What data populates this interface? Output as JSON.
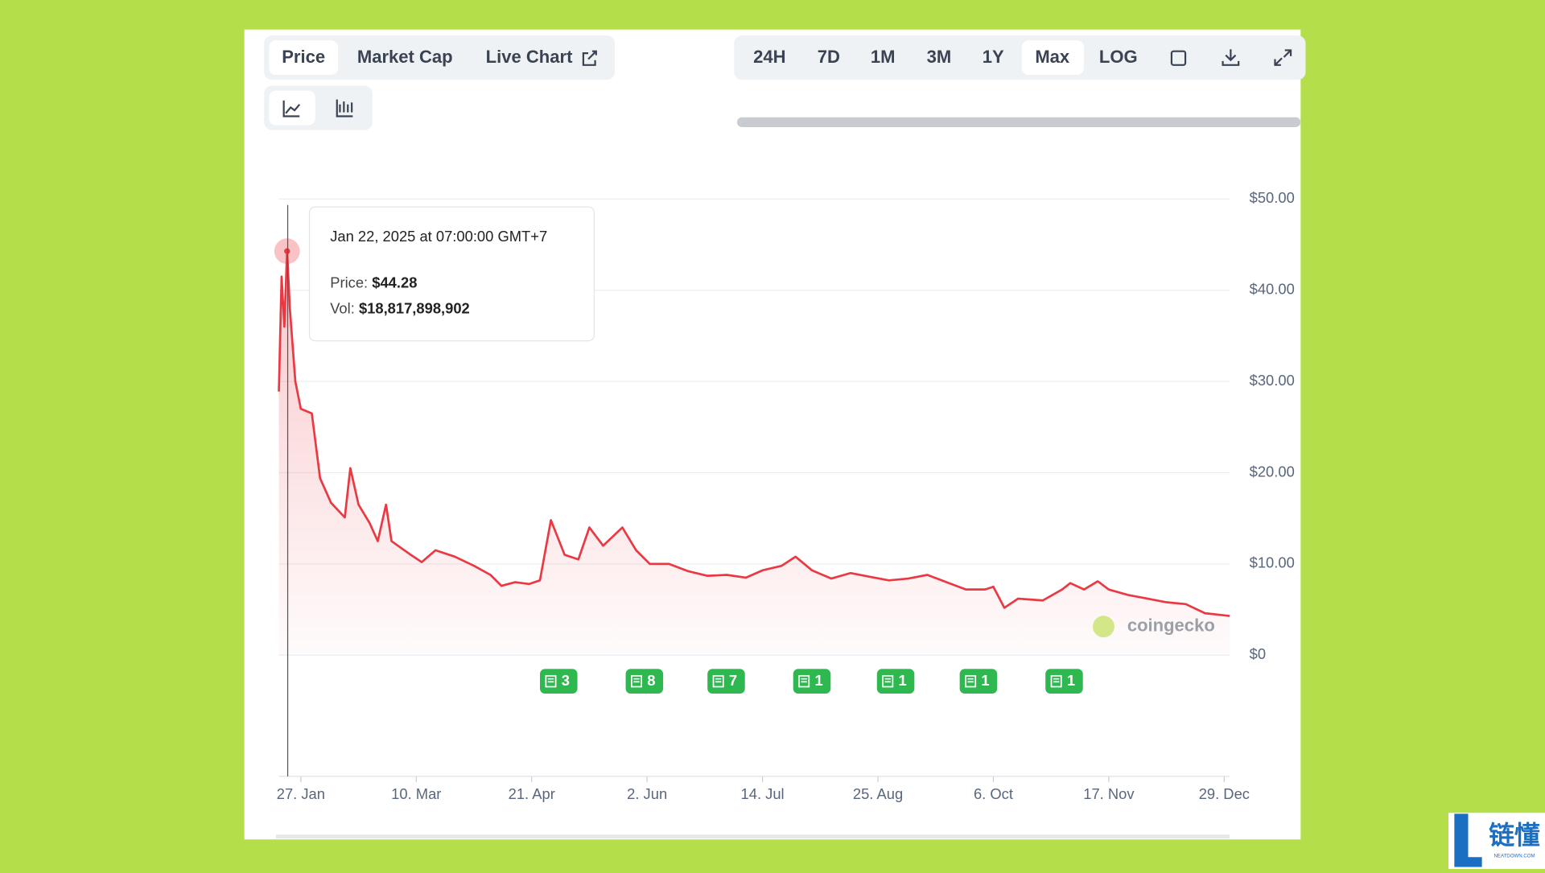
{
  "tabs": [
    "Price",
    "Market Cap",
    "Live Chart"
  ],
  "ranges": [
    "24H",
    "7D",
    "1M",
    "3M",
    "1Y",
    "Max",
    "LOG"
  ],
  "tooltip": {
    "date": "Jan 22, 2025 at 07:00:00 GMT+7",
    "price_label": "Price:",
    "price": "$44.28",
    "vol_label": "Vol:",
    "vol": "$18,817,898,902"
  },
  "news": [
    "3",
    "8",
    "7",
    "1",
    "1",
    "1",
    "1"
  ],
  "watermark": "coingecko",
  "logo": {
    "name": "链懂",
    "site": "NEATDOWN.COM"
  },
  "chart_data": {
    "type": "line",
    "x": [
      "19. Jan",
      "20. Jan",
      "21. Jan",
      "22. Jan",
      "23. Jan",
      "25. Jan",
      "27. Jan",
      "31. Jan",
      "3. Feb",
      "7. Feb",
      "12. Feb",
      "14. Feb",
      "17. Feb",
      "21. Feb",
      "24. Feb",
      "27. Feb",
      "1. Mar",
      "8. Mar",
      "12. Mar",
      "17. Mar",
      "24. Mar",
      "31. Mar",
      "6. Apr",
      "10. Apr",
      "15. Apr",
      "20. Apr",
      "24. Apr",
      "28. Apr",
      "3. May",
      "8. May",
      "12. May",
      "17. May",
      "24. May",
      "29. May",
      "3. Jun",
      "10. Jun",
      "17. Jun",
      "24. Jun",
      "1. Jul",
      "8. Jul",
      "14. Jul",
      "21. Jul",
      "26. Jul",
      "1. Aug",
      "8. Aug",
      "15. Aug",
      "22. Aug",
      "29. Aug",
      "5. Sep",
      "12. Sep",
      "19. Sep",
      "26. Sep",
      "3. Oct",
      "6. Oct",
      "10. Oct",
      "15. Oct",
      "24. Oct",
      "31. Oct",
      "3. Nov",
      "8. Nov",
      "13. Nov",
      "17. Nov",
      "24. Nov",
      "1. Dec",
      "8. Dec",
      "15. Dec",
      "22. Dec",
      "31. Dec"
    ],
    "series": [
      {
        "name": "Price",
        "color": "#ea3943",
        "values": [
          28.9,
          41.5,
          36,
          44.28,
          38,
          30,
          27,
          26.5,
          19.4,
          16.7,
          15.1,
          20.5,
          16.5,
          14.5,
          12.5,
          16.5,
          12.5,
          11,
          10.2,
          11.5,
          10.8,
          9.8,
          8.8,
          7.6,
          8,
          7.8,
          8.2,
          14.8,
          11,
          10.5,
          14,
          12,
          14,
          11.5,
          10,
          10,
          9.2,
          8.7,
          8.8,
          8.5,
          9.3,
          9.8,
          10.8,
          9.3,
          8.4,
          9,
          8.6,
          8.2,
          8.4,
          8.8,
          8,
          7.2,
          7.2,
          7.5,
          5.2,
          6.2,
          6,
          7.2,
          7.9,
          7.2,
          8.1,
          7.2,
          6.6,
          6.2,
          5.8,
          5.6,
          4.6,
          4.3
        ]
      }
    ],
    "xlim": [
      "19. Jan",
      "31. Dec"
    ],
    "xticks": [
      "27. Jan",
      "10. Mar",
      "21. Apr",
      "2. Jun",
      "14. Jul",
      "25. Aug",
      "6. Oct",
      "17. Nov",
      "29. Dec"
    ],
    "ylim": [
      0,
      50
    ],
    "yticks": [
      {
        "value": 0,
        "label": "$0"
      },
      {
        "value": 10,
        "label": "$10.00"
      },
      {
        "value": 20,
        "label": "$20.00"
      },
      {
        "value": 30,
        "label": "$30.00"
      },
      {
        "value": 40,
        "label": "$40.00"
      },
      {
        "value": 50,
        "label": "$50.00"
      }
    ],
    "grid": true
  }
}
